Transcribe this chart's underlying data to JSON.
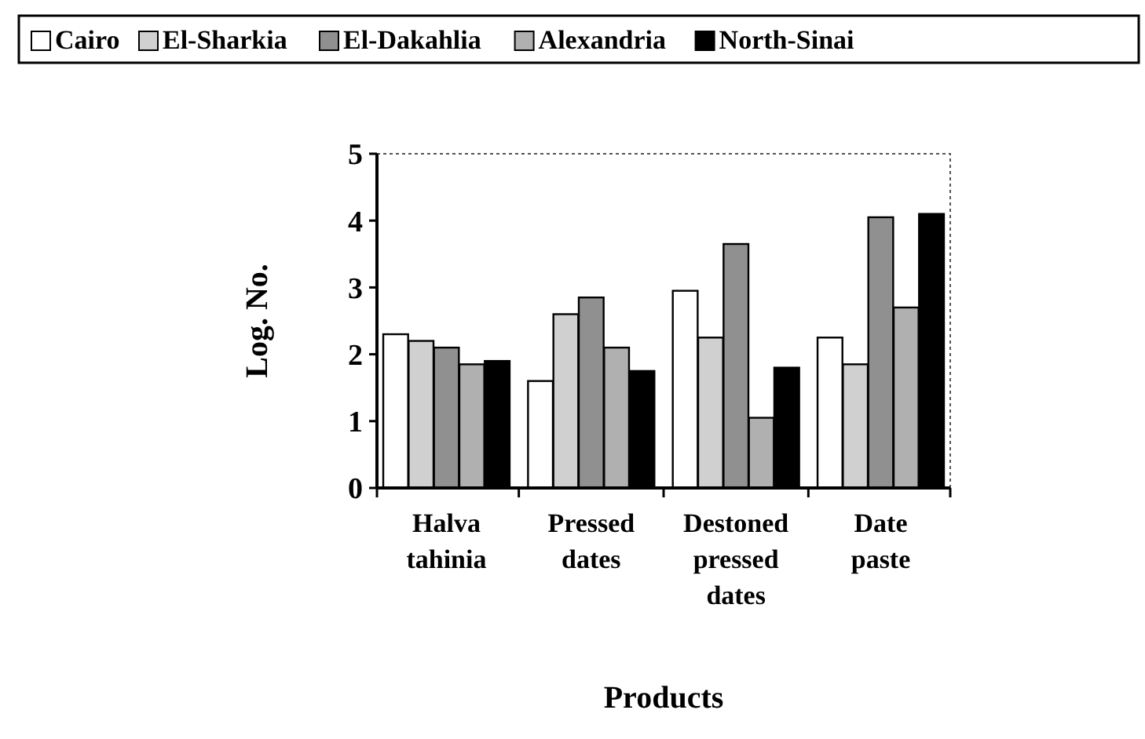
{
  "chart_data": {
    "type": "bar",
    "xlabel": "Products",
    "ylabel": "Log. No.",
    "categories": [
      "Halva tahinia",
      "Pressed dates",
      "Destoned pressed dates",
      "Date paste"
    ],
    "series": [
      {
        "name": "Cairo",
        "color": "#ffffff",
        "values": [
          2.3,
          1.6,
          2.95,
          2.25
        ]
      },
      {
        "name": "El-Sharkia",
        "color": "#d0d0d0",
        "values": [
          2.2,
          2.6,
          2.25,
          1.85
        ]
      },
      {
        "name": "El-Dakahlia",
        "color": "#909090",
        "values": [
          2.1,
          2.85,
          3.65,
          4.05
        ]
      },
      {
        "name": "Alexandria",
        "color": "#b0b0b0",
        "values": [
          1.85,
          2.1,
          1.05,
          2.7
        ]
      },
      {
        "name": "North-Sinai",
        "color": "#000000",
        "values": [
          1.9,
          1.75,
          1.8,
          4.1
        ]
      }
    ],
    "ylim": [
      0,
      5
    ],
    "yticks": [
      0,
      1,
      2,
      3,
      4,
      5
    ],
    "grid": false,
    "legend": "top"
  }
}
